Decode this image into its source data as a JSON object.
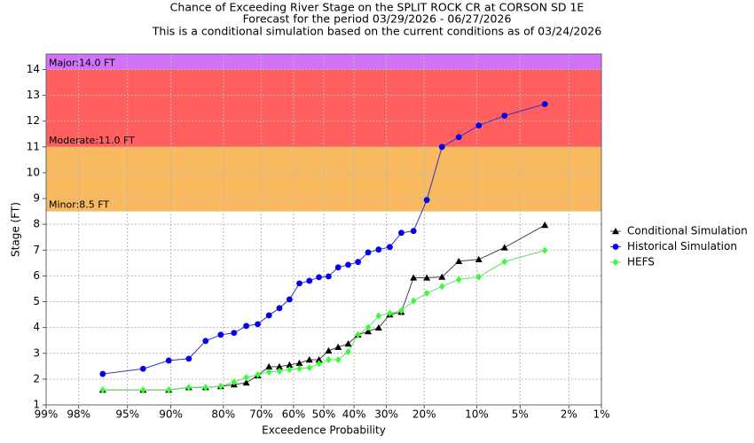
{
  "chart_data": {
    "type": "line",
    "title": "Chance of Exceeding River Stage on the SPLIT ROCK CR at CORSON SD 1E",
    "subtitle": "Forecast for the period 03/29/2026 - 06/27/2026",
    "note": "This is a conditional simulation based on the current conditions as of 03/24/2026",
    "x_label": "Exceedence Probability",
    "y_label": "Stage (FT)",
    "x_scale": "probability",
    "xlim": [
      99,
      1
    ],
    "ylim": [
      1,
      14.6
    ],
    "xticks": [
      {
        "value": 99,
        "label": "99%"
      },
      {
        "value": 98,
        "label": "98%"
      },
      {
        "value": 95,
        "label": "95%"
      },
      {
        "value": 90,
        "label": "90%"
      },
      {
        "value": 80,
        "label": "80%"
      },
      {
        "value": 70,
        "label": "70%"
      },
      {
        "value": 60,
        "label": "60%"
      },
      {
        "value": 50,
        "label": "50%"
      },
      {
        "value": 40,
        "label": "40%"
      },
      {
        "value": 30,
        "label": "30%"
      },
      {
        "value": 20,
        "label": "20%"
      },
      {
        "value": 10,
        "label": "10%"
      },
      {
        "value": 5,
        "label": "5%"
      },
      {
        "value": 2,
        "label": "2%"
      },
      {
        "value": 1,
        "label": "1%"
      }
    ],
    "yticks": [
      1,
      2,
      3,
      4,
      5,
      6,
      7,
      8,
      9,
      10,
      11,
      12,
      13,
      14
    ],
    "grid": true,
    "legend": "right",
    "flood_categories": [
      {
        "label": "Minor:8.5 FT",
        "value": 8.5,
        "color": "#f9b95f"
      },
      {
        "label": "Moderate:11.0 FT",
        "value": 11.0,
        "color": "#ff5f5f"
      },
      {
        "label": "Major:14.0 FT",
        "value": 14.0,
        "color": "#d271fb"
      }
    ],
    "x": [
      96.8,
      93.5,
      90.3,
      87.1,
      83.9,
      80.6,
      77.4,
      74.2,
      71.0,
      67.7,
      64.5,
      61.3,
      58.1,
      54.8,
      51.6,
      48.4,
      45.2,
      41.9,
      38.7,
      35.5,
      32.3,
      29.0,
      25.8,
      22.6,
      19.4,
      16.1,
      12.9,
      9.7,
      6.5,
      3.2
    ],
    "series": [
      {
        "name": "Conditional Simulation",
        "color": "#000000",
        "line_color": "#444444",
        "marker": "triangle",
        "values": [
          1.58,
          1.58,
          1.58,
          1.68,
          1.68,
          1.72,
          1.79,
          1.86,
          2.14,
          2.48,
          2.48,
          2.55,
          2.62,
          2.75,
          2.75,
          3.1,
          3.24,
          3.37,
          3.72,
          3.85,
          3.99,
          4.5,
          4.6,
          5.93,
          5.93,
          5.96,
          6.57,
          6.64,
          7.1,
          7.97
        ]
      },
      {
        "name": "Historical Simulation",
        "color": "#0000ee",
        "line_color": "#3333cc",
        "marker": "circle",
        "values": [
          2.2,
          2.4,
          2.72,
          2.79,
          3.48,
          3.72,
          3.79,
          4.06,
          4.13,
          4.47,
          4.75,
          5.09,
          5.71,
          5.81,
          5.95,
          5.98,
          6.33,
          6.43,
          6.54,
          6.91,
          7.02,
          7.12,
          7.67,
          7.74,
          8.94,
          11.0,
          11.38,
          11.83,
          12.21,
          12.66
        ]
      },
      {
        "name": "HEFS",
        "color": "#33ff33",
        "line_color": "#66dd66",
        "marker": "diamond",
        "values": [
          1.58,
          1.58,
          1.58,
          1.68,
          1.68,
          1.72,
          1.89,
          2.06,
          2.17,
          2.27,
          2.31,
          2.37,
          2.41,
          2.44,
          2.6,
          2.75,
          2.75,
          3.06,
          3.72,
          4.0,
          4.45,
          4.55,
          4.65,
          5.03,
          5.33,
          5.59,
          5.86,
          5.96,
          6.55,
          6.99
        ]
      }
    ]
  }
}
